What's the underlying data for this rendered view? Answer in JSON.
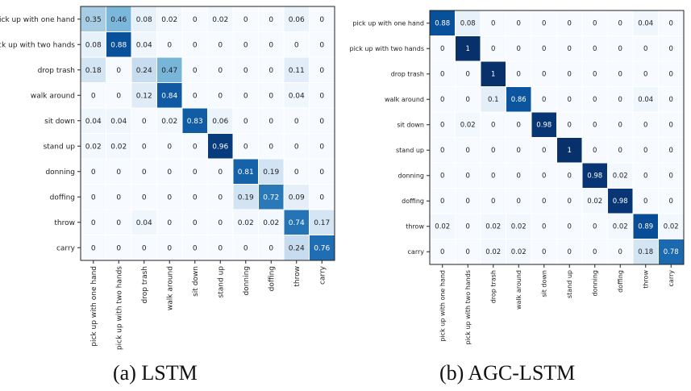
{
  "chart_data": [
    {
      "type": "heatmap",
      "title": "",
      "caption": "(a)  LSTM",
      "categories": [
        "pick up with one hand",
        "pick up with two hands",
        "drop trash",
        "walk around",
        "sit down",
        "stand up",
        "donning",
        "doffing",
        "throw",
        "carry"
      ],
      "ylabels": [
        "pick up with one hand",
        "pick up with two hands",
        "drop trash",
        "walk around",
        "sit down",
        "stand up",
        "donning",
        "doffing",
        "throw",
        "carry"
      ],
      "values": [
        [
          0.35,
          0.46,
          0.08,
          0.02,
          0,
          0.02,
          0,
          0,
          0.06,
          0
        ],
        [
          0.08,
          0.88,
          0.04,
          0,
          0,
          0,
          0,
          0,
          0,
          0
        ],
        [
          0.18,
          0,
          0.24,
          0.47,
          0,
          0,
          0,
          0,
          0.11,
          0
        ],
        [
          0,
          0,
          0.12,
          0.84,
          0,
          0,
          0,
          0,
          0.04,
          0
        ],
        [
          0.04,
          0.04,
          0,
          0.02,
          0.83,
          0.06,
          0,
          0,
          0,
          0
        ],
        [
          0.02,
          0.02,
          0,
          0,
          0,
          0.96,
          0,
          0,
          0,
          0
        ],
        [
          0,
          0,
          0,
          0,
          0,
          0,
          0.81,
          0.19,
          0,
          0
        ],
        [
          0,
          0,
          0,
          0,
          0,
          0,
          0.19,
          0.72,
          0.09,
          0
        ],
        [
          0,
          0,
          0.04,
          0,
          0,
          0,
          0.02,
          0.02,
          0.74,
          0.17
        ],
        [
          0,
          0,
          0,
          0,
          0,
          0,
          0,
          0,
          0.24,
          0.76
        ]
      ],
      "colorscale": {
        "low": "#f7fbff",
        "high": "#08306b"
      }
    },
    {
      "type": "heatmap",
      "title": "",
      "caption": "(b)  AGC-LSTM",
      "categories": [
        "pick up with one hand",
        "pick up with two hands",
        "drop trash",
        "walk around",
        "sit down",
        "stand up",
        "donning",
        "doffing",
        "throw",
        "carry"
      ],
      "ylabels": [
        "pick up with one hand",
        "pick up with two hands",
        "drop trash",
        "walk around",
        "sit down",
        "stand up",
        "donning",
        "doffing",
        "throw",
        "carry"
      ],
      "values": [
        [
          0.88,
          0.08,
          0,
          0,
          0,
          0,
          0,
          0,
          0.04,
          0
        ],
        [
          0,
          1,
          0,
          0,
          0,
          0,
          0,
          0,
          0,
          0
        ],
        [
          0,
          0,
          1,
          0,
          0,
          0,
          0,
          0,
          0,
          0
        ],
        [
          0,
          0,
          0.1,
          0.86,
          0,
          0,
          0,
          0,
          0.04,
          0
        ],
        [
          0,
          0.02,
          0,
          0,
          0.98,
          0,
          0,
          0,
          0,
          0
        ],
        [
          0,
          0,
          0,
          0,
          0,
          1,
          0,
          0,
          0,
          0
        ],
        [
          0,
          0,
          0,
          0,
          0,
          0,
          0.98,
          0.02,
          0,
          0
        ],
        [
          0,
          0,
          0,
          0,
          0,
          0,
          0.02,
          0.98,
          0,
          0
        ],
        [
          0.02,
          0,
          0.02,
          0.02,
          0,
          0,
          0,
          0.02,
          0.89,
          0.02
        ],
        [
          0,
          0,
          0.02,
          0.02,
          0,
          0,
          0,
          0,
          0.18,
          0.78
        ]
      ],
      "colorscale": {
        "low": "#f7fbff",
        "high": "#08306b"
      }
    }
  ]
}
